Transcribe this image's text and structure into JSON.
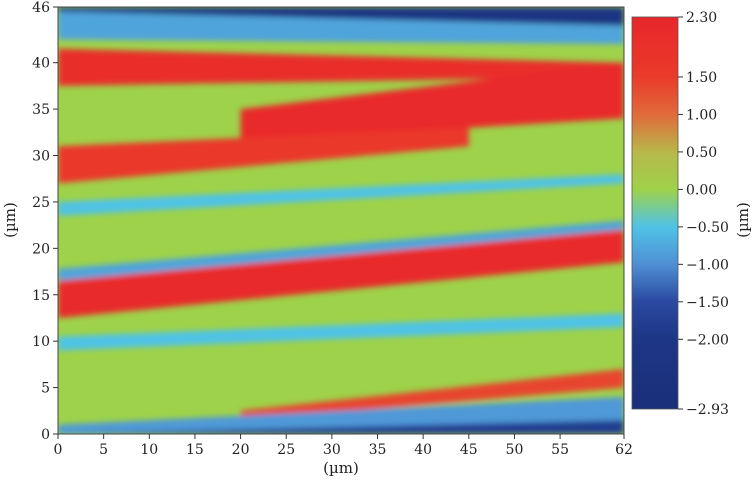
{
  "chart_data": {
    "type": "heatmap",
    "title": "",
    "xlabel": "(µm)",
    "ylabel": "(µm)",
    "colorbar_label": "(µm)",
    "xlim": [
      0,
      62
    ],
    "ylim": [
      0,
      46
    ],
    "clim": [
      -2.93,
      2.3
    ],
    "x_ticks": [
      0,
      5,
      10,
      15,
      20,
      25,
      30,
      35,
      40,
      45,
      50,
      55,
      62
    ],
    "y_ticks": [
      0,
      5,
      10,
      15,
      20,
      25,
      30,
      35,
      40,
      46
    ],
    "colorbar_ticks": [
      "2.30",
      "1.50",
      "1.00",
      "0.50",
      "0.00",
      "−0.50",
      "−1.00",
      "−1.50",
      "−2.00",
      "−2.93"
    ],
    "colorbar_tick_values": [
      2.3,
      1.5,
      1.0,
      0.5,
      0.0,
      -0.5,
      -1.0,
      -1.5,
      -2.0,
      -2.93
    ],
    "colormap": [
      {
        "value": 2.3,
        "color": "#e8262a"
      },
      {
        "value": 1.5,
        "color": "#ea3b2a"
      },
      {
        "value": 1.0,
        "color": "#e06a3a"
      },
      {
        "value": 0.5,
        "color": "#b8b84a"
      },
      {
        "value": 0.0,
        "color": "#9ed24a"
      },
      {
        "value": -0.5,
        "color": "#4fc3e6"
      },
      {
        "value": -1.0,
        "color": "#4f8fd4"
      },
      {
        "value": -1.5,
        "color": "#2a49a0"
      },
      {
        "value": -2.0,
        "color": "#1d3686"
      },
      {
        "value": -2.93,
        "color": "#1b2f7a"
      }
    ],
    "grid": false,
    "colorbar_position": "right",
    "features": [
      {
        "kind": "band",
        "x": [
          0,
          62
        ],
        "y_left": [
          45.5,
          46
        ],
        "y_right": [
          44.0,
          46
        ],
        "value": -2.2
      },
      {
        "kind": "band",
        "x": [
          0,
          62
        ],
        "y_left": [
          42.5,
          45.5
        ],
        "y_right": [
          42.0,
          44.0
        ],
        "value": -0.8
      },
      {
        "kind": "band",
        "x": [
          0,
          62
        ],
        "y_left": [
          37.5,
          41.5
        ],
        "y_right": [
          38.5,
          40.0
        ],
        "value": 2.0
      },
      {
        "kind": "band",
        "x": [
          20,
          62
        ],
        "y_left": [
          31.5,
          35.0
        ],
        "y_right": [
          34.0,
          40.0
        ],
        "value": 2.1
      },
      {
        "kind": "band",
        "x": [
          0,
          45
        ],
        "y_left": [
          27.0,
          31.0
        ],
        "y_right": [
          31.0,
          33.0
        ],
        "value": 1.6
      },
      {
        "kind": "band",
        "x": [
          0,
          62
        ],
        "y_left": [
          23.5,
          25.0
        ],
        "y_right": [
          27.0,
          28.0
        ],
        "value": -0.5
      },
      {
        "kind": "band",
        "x": [
          0,
          62
        ],
        "y_left": [
          12.5,
          17.0
        ],
        "y_right": [
          18.5,
          22.0
        ],
        "value": 2.2
      },
      {
        "kind": "band",
        "x": [
          0,
          62
        ],
        "y_left": [
          16.5,
          17.8
        ],
        "y_right": [
          22.0,
          23.0
        ],
        "value": -0.8
      },
      {
        "kind": "band",
        "x": [
          0,
          62
        ],
        "y_left": [
          9.0,
          10.5
        ],
        "y_right": [
          11.5,
          13.0
        ],
        "value": -0.5
      },
      {
        "kind": "band",
        "x": [
          20,
          62
        ],
        "y_left": [
          1.5,
          2.5
        ],
        "y_right": [
          5.0,
          7.0
        ],
        "value": 1.4
      },
      {
        "kind": "band",
        "x": [
          0,
          62
        ],
        "y_left": [
          0.0,
          1.0
        ],
        "y_right": [
          0.0,
          4.0
        ],
        "value": -0.9
      },
      {
        "kind": "band",
        "x": [
          0,
          62
        ],
        "y_left": [
          0.0,
          0.0
        ],
        "y_right": [
          0.0,
          1.5
        ],
        "value": -1.8
      }
    ]
  }
}
